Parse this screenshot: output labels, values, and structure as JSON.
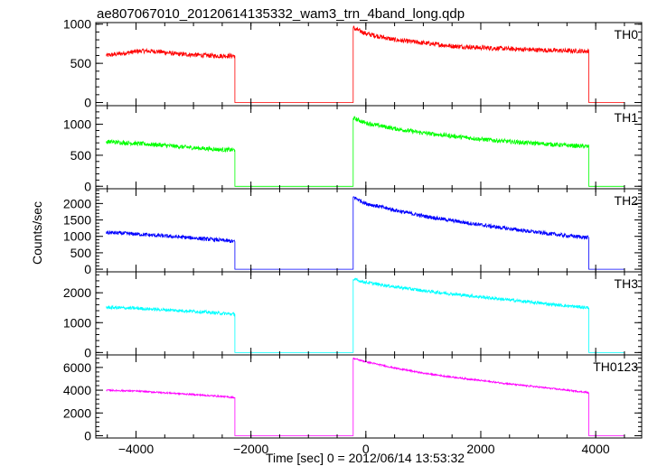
{
  "chart_data": {
    "type": "line",
    "title": "ae807067010_20120614135332_wam3_trn_4band_long.qdp",
    "xlabel": "Time [sec] 0 = 2012/06/14 13:53:32",
    "ylabel": "Counts/sec",
    "xlim": [
      -4700,
      4800
    ],
    "xticks": [
      -4000,
      -2000,
      0,
      2000,
      4000
    ],
    "grid": false,
    "panels": [
      {
        "name": "TH0",
        "color": "#ff0000",
        "ylim": [
          -40,
          1020
        ],
        "yticks": [
          0,
          500,
          1000
        ],
        "noise": 30,
        "points": [
          [
            -4520,
            600
          ],
          [
            -4200,
            630
          ],
          [
            -3900,
            660
          ],
          [
            -3600,
            650
          ],
          [
            -3300,
            620
          ],
          [
            -2900,
            605
          ],
          [
            -2600,
            595
          ],
          [
            -2280,
            595
          ],
          [
            -2280,
            0
          ],
          [
            -220,
            0
          ],
          [
            -220,
            950
          ],
          [
            0,
            880
          ],
          [
            500,
            800
          ],
          [
            1000,
            760
          ],
          [
            1500,
            720
          ],
          [
            2000,
            700
          ],
          [
            2500,
            685
          ],
          [
            3000,
            670
          ],
          [
            3500,
            660
          ],
          [
            3880,
            655
          ],
          [
            3880,
            0
          ],
          [
            4500,
            0
          ]
        ]
      },
      {
        "name": "TH1",
        "color": "#00ff00",
        "ylim": [
          -40,
          1300
        ],
        "yticks": [
          0,
          500,
          1000
        ],
        "noise": 35,
        "points": [
          [
            -4520,
            720
          ],
          [
            -4000,
            690
          ],
          [
            -3500,
            660
          ],
          [
            -3000,
            620
          ],
          [
            -2500,
            590
          ],
          [
            -2280,
            585
          ],
          [
            -2280,
            0
          ],
          [
            -220,
            0
          ],
          [
            -220,
            1100
          ],
          [
            0,
            1020
          ],
          [
            500,
            930
          ],
          [
            1000,
            860
          ],
          [
            1500,
            810
          ],
          [
            2000,
            760
          ],
          [
            2500,
            720
          ],
          [
            3000,
            690
          ],
          [
            3500,
            660
          ],
          [
            3880,
            640
          ],
          [
            3880,
            0
          ],
          [
            4500,
            0
          ]
        ]
      },
      {
        "name": "TH2",
        "color": "#0000ff",
        "ylim": [
          -80,
          2450
        ],
        "yticks": [
          0,
          500,
          1000,
          1500,
          2000
        ],
        "noise": 60,
        "points": [
          [
            -4520,
            1120
          ],
          [
            -4000,
            1070
          ],
          [
            -3500,
            1010
          ],
          [
            -3000,
            950
          ],
          [
            -2500,
            880
          ],
          [
            -2280,
            840
          ],
          [
            -2280,
            0
          ],
          [
            -220,
            0
          ],
          [
            -220,
            2200
          ],
          [
            0,
            2000
          ],
          [
            500,
            1800
          ],
          [
            1000,
            1620
          ],
          [
            1500,
            1480
          ],
          [
            2000,
            1350
          ],
          [
            2500,
            1230
          ],
          [
            3000,
            1120
          ],
          [
            3500,
            1020
          ],
          [
            3880,
            960
          ],
          [
            3880,
            0
          ],
          [
            4500,
            0
          ]
        ]
      },
      {
        "name": "TH3",
        "color": "#00ffff",
        "ylim": [
          -80,
          2700
        ],
        "yticks": [
          0,
          1000,
          2000
        ],
        "noise": 55,
        "points": [
          [
            -4520,
            1510
          ],
          [
            -4000,
            1480
          ],
          [
            -3500,
            1430
          ],
          [
            -3000,
            1380
          ],
          [
            -2500,
            1310
          ],
          [
            -2280,
            1280
          ],
          [
            -2280,
            0
          ],
          [
            -220,
            0
          ],
          [
            -220,
            2450
          ],
          [
            0,
            2350
          ],
          [
            500,
            2200
          ],
          [
            1000,
            2070
          ],
          [
            1500,
            1960
          ],
          [
            2000,
            1860
          ],
          [
            2500,
            1760
          ],
          [
            3000,
            1660
          ],
          [
            3500,
            1560
          ],
          [
            3880,
            1500
          ],
          [
            3880,
            0
          ],
          [
            4500,
            0
          ]
        ]
      },
      {
        "name": "TH0123",
        "color": "#ff00ff",
        "ylim": [
          -200,
          7100
        ],
        "yticks": [
          0,
          2000,
          4000,
          6000
        ],
        "noise": 70,
        "points": [
          [
            -4520,
            4000
          ],
          [
            -4000,
            3920
          ],
          [
            -3500,
            3780
          ],
          [
            -3000,
            3620
          ],
          [
            -2500,
            3450
          ],
          [
            -2280,
            3350
          ],
          [
            -2280,
            0
          ],
          [
            -220,
            0
          ],
          [
            -220,
            6800
          ],
          [
            0,
            6500
          ],
          [
            500,
            5950
          ],
          [
            1000,
            5500
          ],
          [
            1500,
            5150
          ],
          [
            2000,
            4850
          ],
          [
            2500,
            4550
          ],
          [
            3000,
            4280
          ],
          [
            3500,
            4000
          ],
          [
            3880,
            3800
          ],
          [
            3880,
            0
          ],
          [
            4500,
            0
          ]
        ]
      }
    ]
  }
}
